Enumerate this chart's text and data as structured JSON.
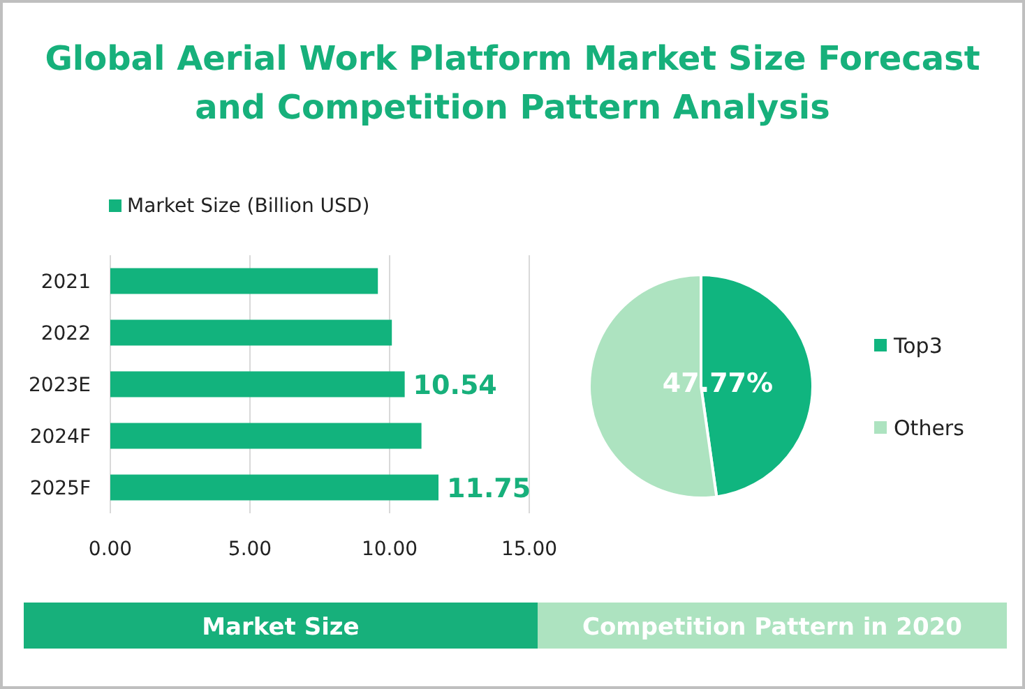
{
  "chart_data": [
    {
      "type": "bar",
      "title": "Global Aerial Work Platform Market Size Forecast and Competition Pattern Analysis",
      "orientation": "horizontal",
      "categories": [
        "2021",
        "2022",
        "2023E",
        "2024F",
        "2025F"
      ],
      "series": [
        {
          "name": "Market Size (Billion USD)",
          "color": "#12b37d",
          "values": [
            9.58,
            10.08,
            10.54,
            11.14,
            11.75
          ]
        }
      ],
      "value_labels": [
        null,
        null,
        "10.54",
        null,
        "11.75"
      ],
      "xlim": [
        0,
        15
      ],
      "xticks": [
        {
          "value": 0,
          "label": "0.00"
        },
        {
          "value": 5,
          "label": "5.00"
        },
        {
          "value": 10,
          "label": "10.00"
        },
        {
          "value": 15,
          "label": "15.00"
        }
      ],
      "grid": "x",
      "legend": "top",
      "annotations": [
        "Market Size"
      ]
    },
    {
      "type": "pie",
      "categories": [
        "Top3",
        "Others"
      ],
      "values": [
        47.77,
        52.23
      ],
      "colors": [
        "#10b57f",
        "#ade3c0"
      ],
      "value_labels": [
        "47.77%",
        null
      ],
      "legend": "right",
      "annotations": [
        "Competition Pattern in 2020"
      ]
    }
  ]
}
